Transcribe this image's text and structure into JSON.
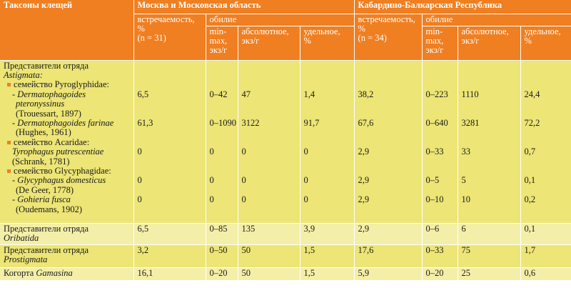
{
  "header": {
    "taxa": "Таксоны клещей",
    "region1": "Москва и Московская область",
    "region2": "Кабардино-Балкарская Республика",
    "occurrence1": [
      "встречаемость,",
      "%",
      "(n = 31)"
    ],
    "occurrence2": [
      "встречаемость,",
      "%",
      "(n = 34)"
    ],
    "abundance": "обилие",
    "minmax": [
      "min-",
      "max,",
      "экз/г"
    ],
    "absolute": [
      "абсолютное,",
      "экз/г"
    ],
    "relative": [
      "удельное,",
      "%"
    ]
  },
  "astigmata": {
    "order": [
      "Представители отряда",
      "Astigmata:"
    ],
    "pyro_family": "семейство Pyroglyphidae:",
    "dpter": [
      "- Dermatophagoides",
      "pteronyssinus",
      "(Trouessart, 1897)"
    ],
    "dfar": [
      "- Dermatophagoides farinae",
      "(Hughes, 1961)"
    ],
    "acar_family": "семейство Acaridae:",
    "tyro": [
      "Tyrophagus putrescentiae",
      "(Schrank, 1781)"
    ],
    "glyc_family": "семейство Glycyphagidae:",
    "glyc": [
      "- Glycyphagus domesticus",
      "(De Geer, 1778)"
    ],
    "gohi": [
      "- Gohieria fusca",
      "(Oudemans, 1902)"
    ]
  },
  "values": {
    "dpter": [
      "6,5",
      "0–42",
      "47",
      "1,4",
      "38,2",
      "0–223",
      "1110",
      "24,4"
    ],
    "dfar": [
      "61,3",
      "0–1090",
      "3122",
      "91,7",
      "67,6",
      "0–640",
      "3281",
      "72,2"
    ],
    "tyro": [
      "0",
      "0",
      "0",
      "0",
      "2,9",
      "0–33",
      "33",
      "0,7"
    ],
    "glyc": [
      "0",
      "0",
      "0",
      "0",
      "2,9",
      "0–5",
      "5",
      "0,1"
    ],
    "gohi": [
      "0",
      "0",
      "0",
      "0",
      "2,9",
      "0–10",
      "10",
      "0,2"
    ]
  },
  "rows": [
    {
      "label": [
        "Представители отряда",
        "Oribatida"
      ],
      "v": [
        "6,5",
        "0–85",
        "135",
        "3,9",
        "2,9",
        "0–6",
        "6",
        "0,1"
      ]
    },
    {
      "label": [
        "Представители отряда",
        "Prostigmata"
      ],
      "v": [
        "3,2",
        "0–50",
        "50",
        "1,5",
        "17,6",
        "0–33",
        "75",
        "1,7"
      ]
    },
    {
      "label": [
        "Когорта ",
        "Gamasina"
      ],
      "v": [
        "16,1",
        "0–20",
        "50",
        "1,5",
        "5,9",
        "0–20",
        "25",
        "0,6"
      ]
    }
  ],
  "colors": {
    "header": "#f07f21",
    "row_dark": "#ede575",
    "row_light": "#f4efa8"
  }
}
